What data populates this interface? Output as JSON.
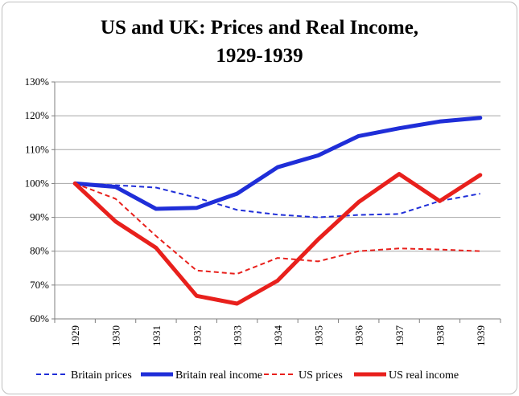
{
  "chart_data": {
    "type": "line",
    "title": [
      "US and UK: Prices and Real Income,",
      "1929-1939"
    ],
    "categories": [
      "1929",
      "1930",
      "1931",
      "1932",
      "1933",
      "1934",
      "1935",
      "1936",
      "1937",
      "1938",
      "1939"
    ],
    "y_ticks": [
      "60%",
      "70%",
      "80%",
      "90%",
      "100%",
      "110%",
      "120%",
      "130%"
    ],
    "ylim": [
      60,
      130
    ],
    "y_step": 10,
    "grid": true,
    "legend_position": "bottom",
    "series": [
      {
        "name": "Britain prices",
        "color": "#1f2ed8",
        "style": "dashed",
        "width": 2,
        "values": [
          100,
          99.5,
          98.8,
          95.8,
          92.2,
          90.8,
          90.0,
          90.7,
          91.0,
          94.8,
          97.0
        ]
      },
      {
        "name": "Britain real income",
        "color": "#1f2ed8",
        "style": "solid",
        "width": 5,
        "values": [
          100,
          99.0,
          92.5,
          92.8,
          97.0,
          104.8,
          108.3,
          114.0,
          116.3,
          118.3,
          119.4
        ]
      },
      {
        "name": "US prices",
        "color": "#e8201c",
        "style": "dashed",
        "width": 2,
        "values": [
          100,
          95.5,
          84.5,
          74.3,
          73.3,
          78.0,
          77.0,
          80.0,
          80.8,
          80.5,
          80.0
        ]
      },
      {
        "name": "US real income",
        "color": "#e8201c",
        "style": "solid",
        "width": 5,
        "values": [
          100,
          88.8,
          81.0,
          66.8,
          64.5,
          71.3,
          83.5,
          94.5,
          102.8,
          94.8,
          102.5
        ]
      }
    ]
  }
}
